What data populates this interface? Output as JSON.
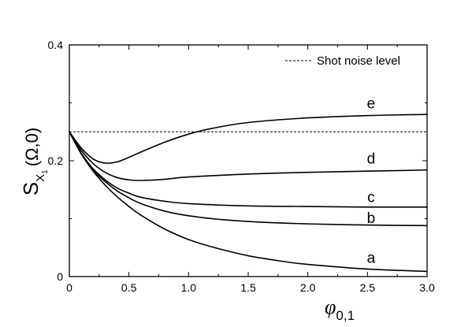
{
  "chart_data": {
    "type": "line",
    "xlabel": "φ",
    "xlabel_sub": "0,1",
    "ylabel": "S",
    "ylabel_sub": "X",
    "ylabel_subsub": "1",
    "ylabel_arg": "(Ω,0)",
    "xlim": [
      0,
      3.0
    ],
    "ylim": [
      0,
      0.4
    ],
    "x_ticks": [
      0,
      0.5,
      1.0,
      1.5,
      2.0,
      2.5,
      3.0
    ],
    "x_tick_labels": [
      "0",
      "0.5",
      "1.0",
      "1.5",
      "2.0",
      "2.5",
      "3.0"
    ],
    "y_ticks": [
      0,
      0.2,
      0.4
    ],
    "y_tick_labels": [
      "0",
      "0.2",
      "0.4"
    ],
    "reference_line": {
      "name": "Shot noise level",
      "y": 0.25
    },
    "legend_position": "top-right",
    "grid": false,
    "series": [
      {
        "name": "a",
        "label_x": 2.53,
        "label_y": 0.033,
        "points": [
          [
            0,
            0.25
          ],
          [
            0.1,
            0.212
          ],
          [
            0.2,
            0.182
          ],
          [
            0.3,
            0.158
          ],
          [
            0.4,
            0.138
          ],
          [
            0.5,
            0.121
          ],
          [
            0.6,
            0.106
          ],
          [
            0.8,
            0.082
          ],
          [
            1.0,
            0.064
          ],
          [
            1.2,
            0.051
          ],
          [
            1.5,
            0.036
          ],
          [
            1.8,
            0.026
          ],
          [
            2.0,
            0.021
          ],
          [
            2.5,
            0.013
          ],
          [
            3.0,
            0.009
          ]
        ]
      },
      {
        "name": "b",
        "label_x": 2.53,
        "label_y": 0.102,
        "points": [
          [
            0,
            0.25
          ],
          [
            0.1,
            0.212
          ],
          [
            0.2,
            0.184
          ],
          [
            0.3,
            0.164
          ],
          [
            0.4,
            0.148
          ],
          [
            0.5,
            0.136
          ],
          [
            0.6,
            0.126
          ],
          [
            0.8,
            0.113
          ],
          [
            1.0,
            0.105
          ],
          [
            1.3,
            0.098
          ],
          [
            1.6,
            0.094
          ],
          [
            2.0,
            0.091
          ],
          [
            2.5,
            0.089
          ],
          [
            3.0,
            0.088
          ]
        ]
      },
      {
        "name": "c",
        "label_x": 2.53,
        "label_y": 0.138,
        "points": [
          [
            0,
            0.25
          ],
          [
            0.1,
            0.213
          ],
          [
            0.2,
            0.186
          ],
          [
            0.3,
            0.167
          ],
          [
            0.4,
            0.153
          ],
          [
            0.5,
            0.144
          ],
          [
            0.6,
            0.137
          ],
          [
            0.8,
            0.13
          ],
          [
            1.0,
            0.126
          ],
          [
            1.5,
            0.122
          ],
          [
            2.0,
            0.121
          ],
          [
            2.5,
            0.12
          ],
          [
            3.0,
            0.12
          ]
        ]
      },
      {
        "name": "d",
        "label_x": 2.53,
        "label_y": 0.205,
        "points": [
          [
            0,
            0.25
          ],
          [
            0.1,
            0.218
          ],
          [
            0.2,
            0.195
          ],
          [
            0.3,
            0.18
          ],
          [
            0.4,
            0.171
          ],
          [
            0.5,
            0.167
          ],
          [
            0.6,
            0.166
          ],
          [
            0.8,
            0.168
          ],
          [
            1.0,
            0.172
          ],
          [
            1.5,
            0.177
          ],
          [
            2.0,
            0.18
          ],
          [
            2.5,
            0.182
          ],
          [
            3.0,
            0.184
          ]
        ]
      },
      {
        "name": "e",
        "label_x": 2.53,
        "label_y": 0.3,
        "points": [
          [
            0,
            0.25
          ],
          [
            0.1,
            0.222
          ],
          [
            0.2,
            0.203
          ],
          [
            0.3,
            0.196
          ],
          [
            0.4,
            0.198
          ],
          [
            0.5,
            0.206
          ],
          [
            0.6,
            0.215
          ],
          [
            0.8,
            0.232
          ],
          [
            1.0,
            0.246
          ],
          [
            1.2,
            0.256
          ],
          [
            1.5,
            0.266
          ],
          [
            2.0,
            0.274
          ],
          [
            2.5,
            0.278
          ],
          [
            3.0,
            0.28
          ]
        ]
      }
    ]
  }
}
